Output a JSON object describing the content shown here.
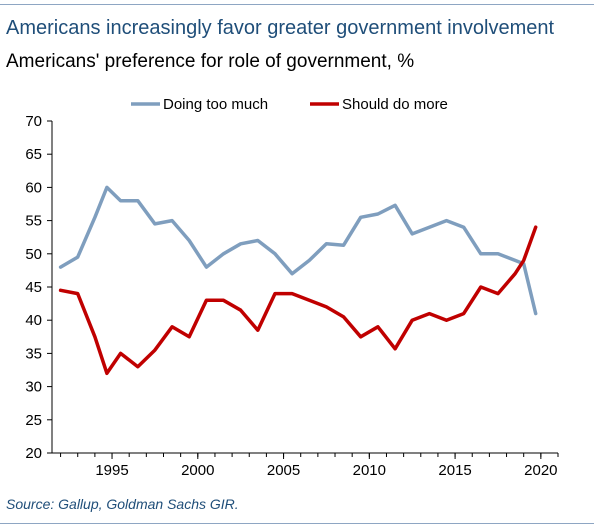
{
  "header": {
    "title": "Americans increasingly favor greater government involvement",
    "subtitle": "Americans' preference for role of government, %"
  },
  "footer": {
    "source": "Source: Gallup, Goldman Sachs GIR."
  },
  "chart_data": {
    "type": "line",
    "title": "Americans increasingly favor greater government involvement",
    "subtitle": "Americans' preference for role of government, %",
    "xlabel": "",
    "ylabel": "",
    "xlim": [
      1991.5,
      2021.0
    ],
    "ylim": [
      20,
      70
    ],
    "x_ticks": [
      1995,
      2000,
      2005,
      2010,
      2015,
      2020
    ],
    "y_ticks": [
      20,
      25,
      30,
      35,
      40,
      45,
      50,
      55,
      60,
      65,
      70
    ],
    "grid": false,
    "legend_position": "top",
    "series": [
      {
        "name": "Doing too much",
        "color": "#7f9ebe",
        "x": [
          1992,
          1993,
          1994,
          1994.7,
          1995.5,
          1996.5,
          1997.5,
          1998.5,
          1999.5,
          2000.5,
          2001.5,
          2002.5,
          2003.5,
          2004.5,
          2005.5,
          2006.5,
          2007.5,
          2008.5,
          2009.5,
          2010.5,
          2011.5,
          2012.5,
          2013.5,
          2014.5,
          2015.5,
          2016.5,
          2017.5,
          2018.5,
          2019.0,
          2019.7
        ],
        "values": [
          48,
          49.5,
          55.5,
          60,
          58,
          58,
          54.5,
          55,
          52,
          48,
          50,
          51.5,
          52,
          50,
          47,
          49,
          51.5,
          51.3,
          55.5,
          56,
          57.3,
          53,
          54,
          55,
          54,
          50,
          50,
          49,
          48.5,
          41
        ]
      },
      {
        "name": "Should do more",
        "color": "#c00000",
        "x": [
          1992,
          1993,
          1994,
          1994.7,
          1995.5,
          1996.5,
          1997.5,
          1998.5,
          1999.5,
          2000.5,
          2001.5,
          2002.5,
          2003.5,
          2004.5,
          2005.5,
          2006.5,
          2007.5,
          2008.5,
          2009.5,
          2010.5,
          2011.5,
          2012.5,
          2013.5,
          2014.5,
          2015.5,
          2016.5,
          2017.5,
          2018.5,
          2019.0,
          2019.7
        ],
        "values": [
          44.5,
          44,
          37.5,
          32,
          35,
          33,
          35.5,
          39,
          37.5,
          43,
          43,
          41.5,
          38.5,
          44,
          44,
          43,
          42,
          40.5,
          37.5,
          39,
          35.7,
          40,
          41,
          40,
          41,
          45,
          44,
          47,
          49,
          54
        ]
      }
    ]
  }
}
